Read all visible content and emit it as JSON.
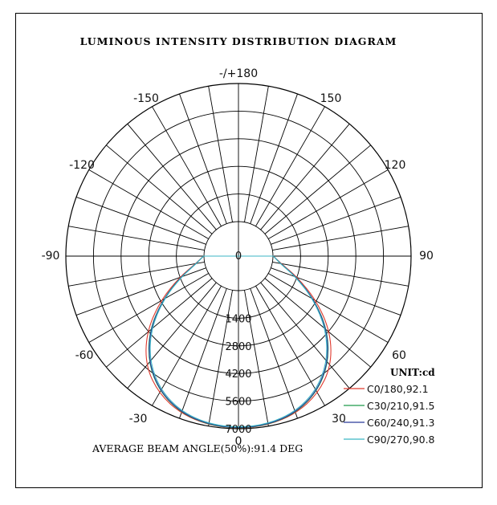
{
  "chart_data": {
    "type": "polar",
    "title": "LUMINOUS INTENSITY DISTRIBUTION DIAGRAM",
    "radial_ticks": [
      "0",
      "1400",
      "2800",
      "4200",
      "5600",
      "7000"
    ],
    "radial_max": 7000,
    "angle_labels": [
      {
        "angle": 180,
        "text": "-/+180"
      },
      {
        "angle": -150,
        "text": "-150"
      },
      {
        "angle": 150,
        "text": "150"
      },
      {
        "angle": -120,
        "text": "-120"
      },
      {
        "angle": 120,
        "text": "120"
      },
      {
        "angle": -90,
        "text": "-90"
      },
      {
        "angle": 90,
        "text": "90"
      },
      {
        "angle": -60,
        "text": "-60"
      },
      {
        "angle": 60,
        "text": "60"
      },
      {
        "angle": -30,
        "text": "-30"
      },
      {
        "angle": 30,
        "text": "30"
      },
      {
        "angle": 0,
        "text": "0"
      }
    ],
    "unit_label": "UNIT:cd",
    "angles": [
      0,
      10,
      20,
      30,
      40,
      50,
      60,
      70,
      80,
      90
    ],
    "series": [
      {
        "name": "C0/180,92.1",
        "color": "#e03a2f",
        "values": [
          7000,
          6950,
          6750,
          6300,
          5550,
          4350,
          2850,
          1450,
          450,
          20
        ]
      },
      {
        "name": "C30/210,91.5",
        "color": "#1f9a4a",
        "values": [
          7000,
          6940,
          6720,
          6200,
          5350,
          4150,
          2700,
          1380,
          420,
          20
        ]
      },
      {
        "name": "C60/240,91.3",
        "color": "#2a3a9a",
        "values": [
          6980,
          6920,
          6700,
          6180,
          5320,
          4120,
          2680,
          1370,
          410,
          20
        ]
      },
      {
        "name": "C90/270,90.8",
        "color": "#3bb6c4",
        "values": [
          6950,
          6890,
          6650,
          6120,
          5250,
          4050,
          2630,
          1340,
          400,
          20
        ]
      }
    ],
    "annotation": "AVERAGE BEAM ANGLE(50%):91.4 DEG"
  }
}
